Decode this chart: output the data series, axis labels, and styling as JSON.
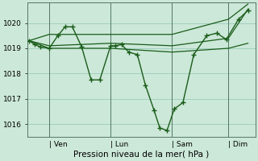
{
  "background_color": "#cce8d8",
  "grid_color": "#99ccbb",
  "line_color": "#1a5c1a",
  "marker_color": "#1a5c1a",
  "xlabel": "Pression niveau de la mer( hPa )",
  "ylim": [
    1015.5,
    1020.8
  ],
  "yticks": [
    1016,
    1017,
    1018,
    1019,
    1020
  ],
  "xtick_labels": [
    "| Ven",
    "| Lun",
    "| Sam",
    "| Dim"
  ],
  "xtick_positions": [
    30,
    115,
    200,
    278
  ],
  "figsize": [
    3.2,
    2.0
  ],
  "dpi": 100,
  "series_main": {
    "x": [
      2,
      10,
      18,
      30,
      42,
      52,
      62,
      75,
      88,
      100,
      115,
      122,
      130,
      140,
      152,
      163,
      175,
      183,
      193,
      203,
      215,
      230,
      248,
      262,
      275,
      292,
      305
    ],
    "y": [
      1019.3,
      1019.15,
      1019.05,
      1019.0,
      1019.5,
      1019.85,
      1019.85,
      1019.05,
      1017.75,
      1017.75,
      1019.1,
      1019.1,
      1019.15,
      1018.85,
      1018.75,
      1017.55,
      1016.55,
      1015.85,
      1015.75,
      1016.6,
      1016.85,
      1018.75,
      1019.5,
      1019.6,
      1019.35,
      1020.15,
      1020.5
    ]
  },
  "series_smooth": [
    {
      "x": [
        2,
        30,
        115,
        200,
        278,
        305
      ],
      "y": [
        1019.3,
        1019.0,
        1019.0,
        1018.85,
        1019.0,
        1019.2
      ]
    },
    {
      "x": [
        2,
        30,
        115,
        200,
        278,
        305
      ],
      "y": [
        1019.3,
        1019.1,
        1019.2,
        1019.1,
        1019.4,
        1020.55
      ]
    },
    {
      "x": [
        2,
        30,
        115,
        200,
        278,
        305
      ],
      "y": [
        1019.3,
        1019.55,
        1019.55,
        1019.55,
        1020.15,
        1020.75
      ]
    }
  ]
}
